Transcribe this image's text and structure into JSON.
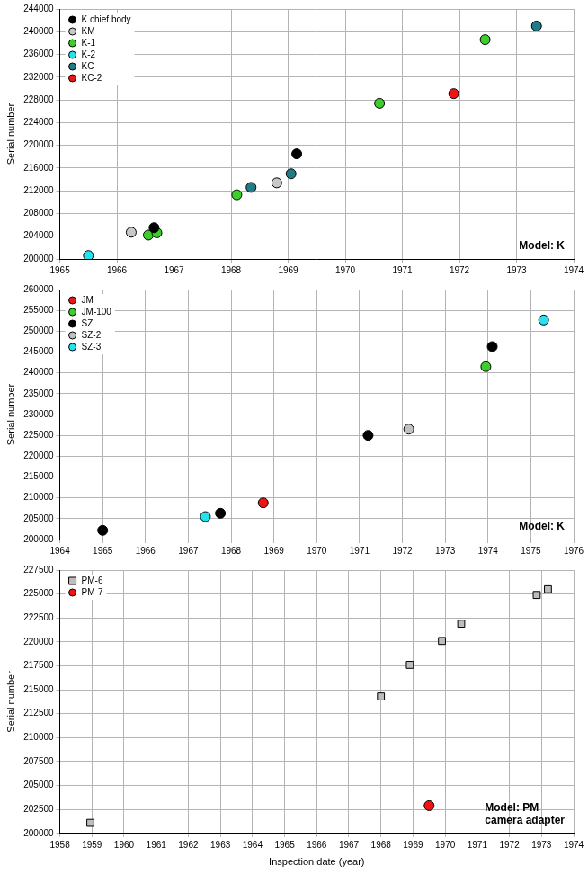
{
  "chart_data": [
    {
      "type": "scatter",
      "ylabel": "Serial number",
      "annotation": [
        "Model: K"
      ],
      "xlim": [
        1965,
        1974
      ],
      "xticks": [
        1965,
        1966,
        1967,
        1968,
        1969,
        1970,
        1971,
        1972,
        1973,
        1974
      ],
      "ylim": [
        200000,
        244000
      ],
      "yticks": [
        200000,
        204000,
        208000,
        212000,
        216000,
        220000,
        224000,
        228000,
        232000,
        236000,
        240000,
        244000
      ],
      "grid": true,
      "legend": "upper left",
      "series": [
        {
          "name": "K chief body",
          "color": "#000000",
          "marker": "circle",
          "x": [
            1966.65,
            1969.15
          ],
          "values": [
            205500,
            218500
          ]
        },
        {
          "name": "KM",
          "color": "#c8c8c8",
          "marker": "circle",
          "x": [
            1966.25,
            1968.8
          ],
          "values": [
            204700,
            213400
          ]
        },
        {
          "name": "K-1",
          "color": "#3ccf2c",
          "marker": "circle",
          "x": [
            1966.55,
            1966.7,
            1968.1,
            1970.6,
            1972.45
          ],
          "values": [
            204200,
            204600,
            211300,
            227400,
            238600
          ]
        },
        {
          "name": "K-2",
          "color": "#22e3ef",
          "marker": "circle",
          "x": [
            1965.5
          ],
          "values": [
            200600
          ]
        },
        {
          "name": "KC",
          "color": "#1f7c88",
          "marker": "circle",
          "x": [
            1968.35,
            1969.05,
            1973.35
          ],
          "values": [
            212600,
            215000,
            241000
          ]
        },
        {
          "name": "KC-2",
          "color": "#ee1414",
          "marker": "circle",
          "x": [
            1971.9
          ],
          "values": [
            229100
          ]
        }
      ]
    },
    {
      "type": "scatter",
      "ylabel": "Serial number",
      "annotation": [
        "Model: K"
      ],
      "xlim": [
        1964,
        1976
      ],
      "xticks": [
        1964,
        1965,
        1966,
        1967,
        1968,
        1969,
        1970,
        1971,
        1972,
        1973,
        1974,
        1975,
        1976
      ],
      "ylim": [
        200000,
        260000
      ],
      "yticks": [
        200000,
        205000,
        210000,
        215000,
        220000,
        225000,
        230000,
        235000,
        240000,
        245000,
        250000,
        255000,
        260000
      ],
      "grid": true,
      "legend": "upper left",
      "series": [
        {
          "name": "JM",
          "color": "#ee1414",
          "marker": "circle",
          "x": [
            1968.75
          ],
          "values": [
            208800
          ]
        },
        {
          "name": "JM-100",
          "color": "#3ccf2c",
          "marker": "circle",
          "x": [
            1973.95
          ],
          "values": [
            241500
          ]
        },
        {
          "name": "SZ",
          "color": "#000000",
          "marker": "circle",
          "x": [
            1965.0,
            1967.75,
            1971.2,
            1974.1
          ],
          "values": [
            202200,
            206300,
            225000,
            246300
          ]
        },
        {
          "name": "SZ-2",
          "color": "#c0c0c0",
          "marker": "circle",
          "x": [
            1972.15
          ],
          "values": [
            226500
          ]
        },
        {
          "name": "SZ-3",
          "color": "#22e3ef",
          "marker": "circle",
          "x": [
            1967.4,
            1975.3
          ],
          "values": [
            205500,
            252700
          ]
        }
      ]
    },
    {
      "type": "scatter",
      "ylabel": "Serial number",
      "xlabel": "Inspection date (year)",
      "annotation": [
        "Model: PM",
        "camera adapter"
      ],
      "xlim": [
        1958,
        1974
      ],
      "xticks": [
        1958,
        1959,
        1960,
        1961,
        1962,
        1963,
        1964,
        1965,
        1966,
        1967,
        1968,
        1969,
        1970,
        1971,
        1972,
        1973,
        1974
      ],
      "ylim": [
        200000,
        227500
      ],
      "yticks": [
        200000,
        202500,
        205000,
        207500,
        210000,
        212500,
        215000,
        217500,
        220000,
        222500,
        225000,
        227500
      ],
      "grid": true,
      "legend": "upper left",
      "series": [
        {
          "name": "PM-6",
          "color": "#bdbdbd",
          "marker": "square",
          "x": [
            1958.95,
            1968.0,
            1968.9,
            1969.9,
            1970.5,
            1972.85,
            1973.2
          ],
          "values": [
            201100,
            214300,
            217600,
            220100,
            221900,
            224900,
            225500
          ]
        },
        {
          "name": "PM-7",
          "color": "#ee1414",
          "marker": "circle",
          "x": [
            1969.5
          ],
          "values": [
            202900
          ]
        }
      ]
    }
  ]
}
